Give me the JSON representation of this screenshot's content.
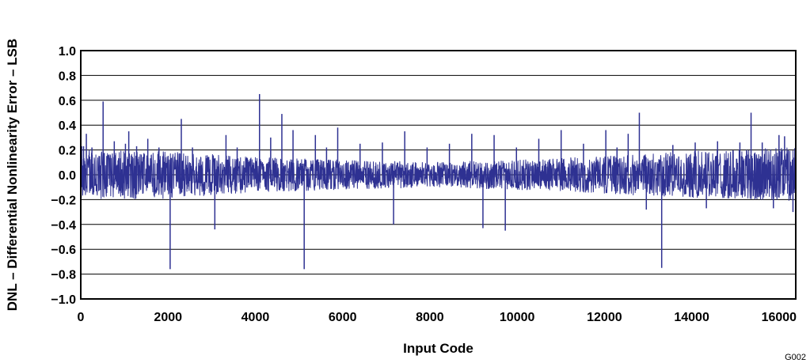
{
  "chart_data": {
    "type": "line",
    "title": "",
    "xlabel": "Input Code",
    "ylabel": "DNL – Differential Nonlinearity Error – LSB",
    "figure_id": "G002",
    "xlim": [
      0,
      16384
    ],
    "ylim": [
      -1.0,
      1.0
    ],
    "grid": "horizontal",
    "line_color": "#2e3192",
    "x_ticks": [
      0,
      2000,
      4000,
      6000,
      8000,
      10000,
      12000,
      14000,
      16000
    ],
    "x_tick_labels": [
      "0",
      "2000",
      "4000",
      "6000",
      "8000",
      "10000",
      "12000",
      "14000",
      "16000"
    ],
    "y_ticks": [
      -1.0,
      -0.8,
      -0.6,
      -0.4,
      -0.2,
      0.0,
      0.2,
      0.4,
      0.6,
      0.8,
      1.0
    ],
    "y_tick_labels": [
      "−1.0",
      "−0.8",
      "−0.6",
      "−0.4",
      "−0.2",
      "0.0",
      "0.2",
      "0.4",
      "0.6",
      "0.8",
      "1.0"
    ],
    "noise_band": [
      {
        "x": 0,
        "lo": -0.2,
        "hi": 0.2
      },
      {
        "x": 2000,
        "lo": -0.19,
        "hi": 0.19
      },
      {
        "x": 4000,
        "lo": -0.14,
        "hi": 0.14
      },
      {
        "x": 6000,
        "lo": -0.12,
        "hi": 0.12
      },
      {
        "x": 8000,
        "lo": -0.1,
        "hi": 0.1
      },
      {
        "x": 10000,
        "lo": -0.12,
        "hi": 0.12
      },
      {
        "x": 12000,
        "lo": -0.15,
        "hi": 0.15
      },
      {
        "x": 14000,
        "lo": -0.19,
        "hi": 0.19
      },
      {
        "x": 16383,
        "lo": -0.21,
        "hi": 0.22
      }
    ],
    "spikes": [
      {
        "x": 20,
        "y": 0.23
      },
      {
        "x": 64,
        "y": 0.23
      },
      {
        "x": 128,
        "y": 0.33
      },
      {
        "x": 256,
        "y": 0.22
      },
      {
        "x": 512,
        "y": 0.59
      },
      {
        "x": 768,
        "y": 0.27
      },
      {
        "x": 1024,
        "y": 0.25
      },
      {
        "x": 1100,
        "y": 0.35
      },
      {
        "x": 1280,
        "y": 0.23
      },
      {
        "x": 1536,
        "y": 0.29
      },
      {
        "x": 1792,
        "y": 0.22
      },
      {
        "x": 2048,
        "y": -0.76
      },
      {
        "x": 2304,
        "y": 0.45
      },
      {
        "x": 2560,
        "y": 0.22
      },
      {
        "x": 3072,
        "y": -0.44
      },
      {
        "x": 3328,
        "y": 0.32
      },
      {
        "x": 3584,
        "y": 0.22
      },
      {
        "x": 4096,
        "y": 0.65
      },
      {
        "x": 4352,
        "y": 0.3
      },
      {
        "x": 4608,
        "y": 0.49
      },
      {
        "x": 4864,
        "y": 0.36
      },
      {
        "x": 5120,
        "y": -0.76
      },
      {
        "x": 5376,
        "y": 0.32
      },
      {
        "x": 5632,
        "y": 0.22
      },
      {
        "x": 5888,
        "y": 0.38
      },
      {
        "x": 6400,
        "y": 0.25
      },
      {
        "x": 6912,
        "y": 0.26
      },
      {
        "x": 7168,
        "y": -0.4
      },
      {
        "x": 7424,
        "y": 0.35
      },
      {
        "x": 7936,
        "y": 0.22
      },
      {
        "x": 8448,
        "y": 0.25
      },
      {
        "x": 8960,
        "y": 0.33
      },
      {
        "x": 9216,
        "y": -0.43
      },
      {
        "x": 9472,
        "y": 0.32
      },
      {
        "x": 9728,
        "y": -0.45
      },
      {
        "x": 9984,
        "y": 0.22
      },
      {
        "x": 10496,
        "y": 0.29
      },
      {
        "x": 11008,
        "y": 0.36
      },
      {
        "x": 11520,
        "y": 0.25
      },
      {
        "x": 12032,
        "y": 0.36
      },
      {
        "x": 12288,
        "y": 0.22
      },
      {
        "x": 12544,
        "y": 0.33
      },
      {
        "x": 12800,
        "y": 0.5
      },
      {
        "x": 12960,
        "y": -0.28
      },
      {
        "x": 13312,
        "y": -0.75
      },
      {
        "x": 13568,
        "y": 0.24
      },
      {
        "x": 14080,
        "y": 0.26
      },
      {
        "x": 14336,
        "y": -0.27
      },
      {
        "x": 14592,
        "y": 0.27
      },
      {
        "x": 15104,
        "y": 0.26
      },
      {
        "x": 15360,
        "y": 0.5
      },
      {
        "x": 15616,
        "y": 0.26
      },
      {
        "x": 15872,
        "y": -0.27
      },
      {
        "x": 16000,
        "y": 0.32
      },
      {
        "x": 16128,
        "y": 0.31
      },
      {
        "x": 16320,
        "y": -0.3
      }
    ]
  }
}
